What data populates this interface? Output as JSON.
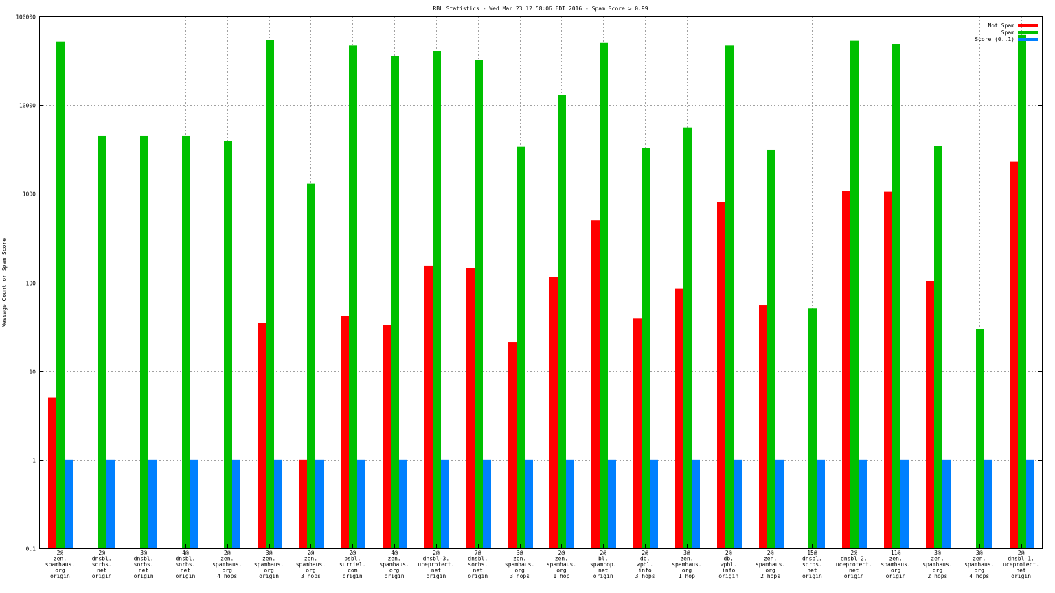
{
  "chart_data": {
    "type": "bar",
    "title": "RBL Statistics - Wed Mar 23 12:58:06 EDT 2016 - Spam Score > 0.99",
    "ylabel": "Message Count or Spam Score",
    "xlabel": "",
    "yscale": "log",
    "ylim": [
      0.1,
      100000
    ],
    "yticks": [
      "0.1",
      "1",
      "10",
      "100",
      "1000",
      "10000",
      "100000"
    ],
    "grid": true,
    "legend_position": "top-right",
    "categories": [
      [
        "2@",
        "zen.",
        "spamhaus.",
        "org",
        "origin"
      ],
      [
        "2@",
        "dnsbl.",
        "sorbs.",
        "net",
        "origin"
      ],
      [
        "3@",
        "dnsbl.",
        "sorbs.",
        "net",
        "origin"
      ],
      [
        "4@",
        "dnsbl.",
        "sorbs.",
        "net",
        "origin"
      ],
      [
        "2@",
        "zen.",
        "spamhaus.",
        "org",
        "4 hops"
      ],
      [
        "3@",
        "zen.",
        "spamhaus.",
        "org",
        "origin"
      ],
      [
        "2@",
        "zen.",
        "spamhaus.",
        "org",
        "3 hops"
      ],
      [
        "2@",
        "psbl.",
        "surriel.",
        "com",
        "origin"
      ],
      [
        "4@",
        "zen.",
        "spamhaus.",
        "org",
        "origin"
      ],
      [
        "2@",
        "dnsbl-3.",
        "uceprotect.",
        "net",
        "origin"
      ],
      [
        "7@",
        "dnsbl.",
        "sorbs.",
        "net",
        "origin"
      ],
      [
        "3@",
        "zen.",
        "spamhaus.",
        "org",
        "3 hops"
      ],
      [
        "2@",
        "zen.",
        "spamhaus.",
        "org",
        "1 hop"
      ],
      [
        "2@",
        "bl.",
        "spamcop.",
        "net",
        "origin"
      ],
      [
        "2@",
        "db.",
        "wpbl.",
        "info",
        "3 hops"
      ],
      [
        "3@",
        "zen.",
        "spamhaus.",
        "org",
        "1 hop"
      ],
      [
        "2@",
        "db.",
        "wpbl.",
        "info",
        "origin"
      ],
      [
        "2@",
        "zen.",
        "spamhaus.",
        "org",
        "2 hops"
      ],
      [
        "15@",
        "dnsbl.",
        "sorbs.",
        "net",
        "origin"
      ],
      [
        "2@",
        "dnsbl-2.",
        "uceprotect.",
        "net",
        "origin"
      ],
      [
        "11@",
        "zen.",
        "spamhaus.",
        "org",
        "origin"
      ],
      [
        "3@",
        "zen.",
        "spamhaus.",
        "org",
        "2 hops"
      ],
      [
        "3@",
        "zen.",
        "spamhaus.",
        "org",
        "4 hops"
      ],
      [
        "2@",
        "dnsbl-1.",
        "uceprotect.",
        "net",
        "origin"
      ]
    ],
    "series": [
      {
        "name": "Not Spam",
        "color": "#ff0000",
        "values": [
          5,
          null,
          null,
          null,
          null,
          35,
          1,
          42,
          33,
          155,
          145,
          21,
          116,
          500,
          39,
          85,
          800,
          55,
          null,
          1080,
          1050,
          103,
          null,
          2300
        ]
      },
      {
        "name": "Spam",
        "color": "#00c000",
        "values": [
          52000,
          4500,
          4500,
          4500,
          3900,
          54000,
          1300,
          47000,
          36000,
          41000,
          32000,
          3400,
          13000,
          51000,
          3300,
          5600,
          47000,
          3150,
          51,
          53000,
          49000,
          3450,
          30,
          62000
        ]
      },
      {
        "name": "Score (0..1)",
        "color": "#0080ff",
        "values": [
          1,
          1,
          1,
          1,
          1,
          1,
          1,
          1,
          1,
          1,
          1,
          1,
          1,
          1,
          1,
          1,
          1,
          1,
          1,
          1,
          1,
          1,
          1,
          1
        ]
      }
    ]
  }
}
